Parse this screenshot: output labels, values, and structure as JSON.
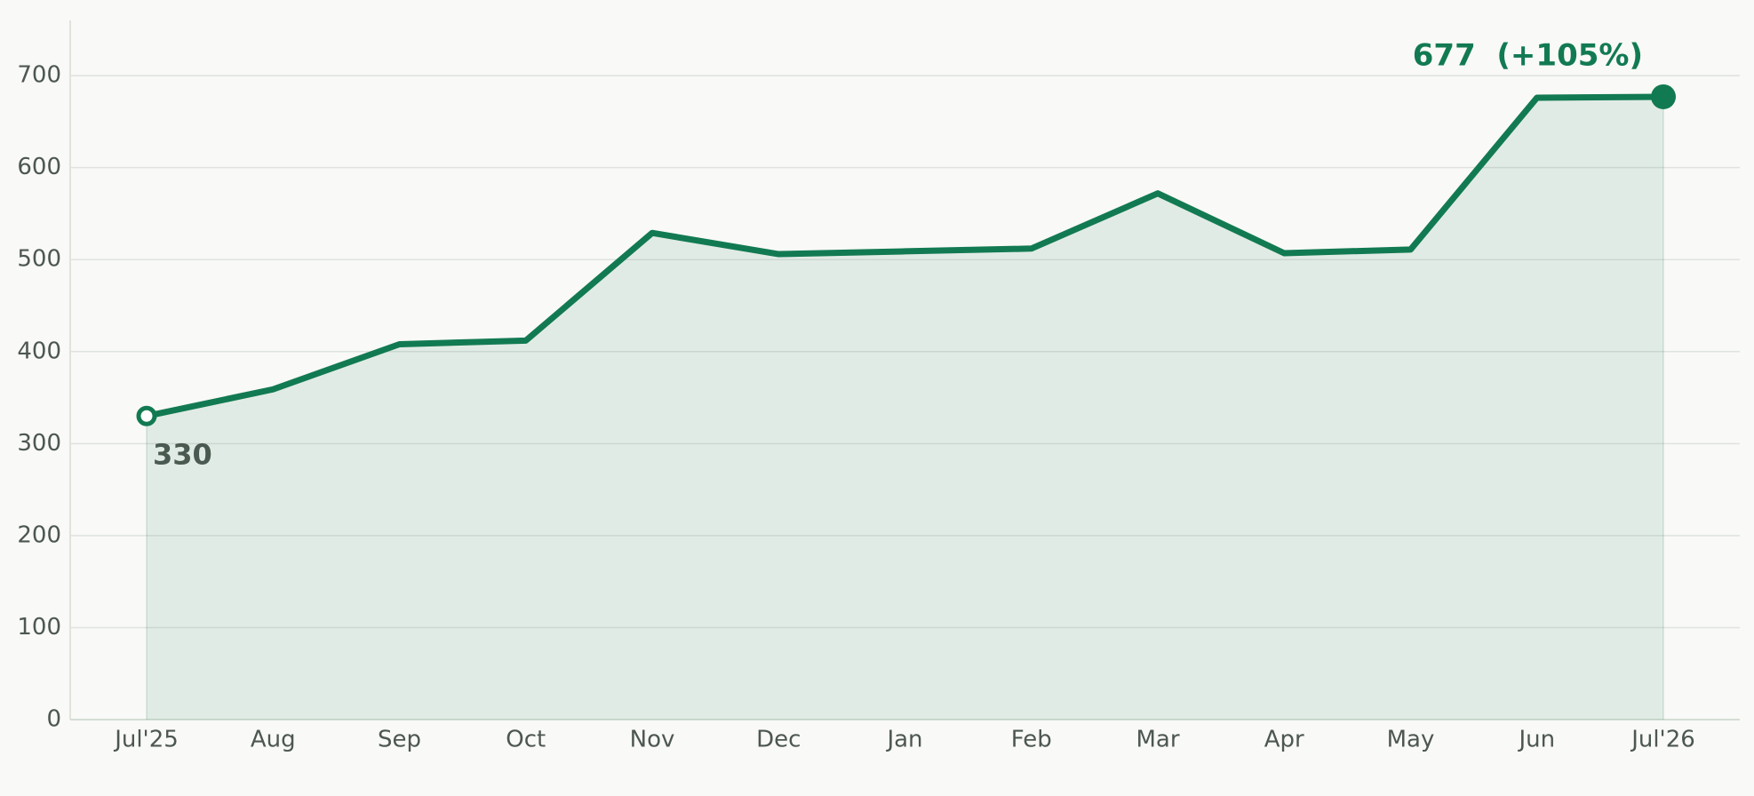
{
  "chart_data": {
    "type": "area-line",
    "categories": [
      "Jul'25",
      "Aug",
      "Sep",
      "Oct",
      "Nov",
      "Dec",
      "Jan",
      "Feb",
      "Mar",
      "Apr",
      "May",
      "Jun",
      "Jul'26"
    ],
    "values": [
      330,
      359,
      408,
      412,
      529,
      506,
      509,
      512,
      572,
      507,
      511,
      676,
      677
    ],
    "value_labels": [
      "330",
      null,
      null,
      null,
      null,
      null,
      null,
      null,
      null,
      null,
      null,
      null,
      "677  (+105%)"
    ],
    "color": "#127a52",
    "ylim": [
      0,
      760
    ],
    "yticks": [
      0,
      100,
      200,
      300,
      400,
      500,
      600,
      700
    ],
    "grid": true
  }
}
